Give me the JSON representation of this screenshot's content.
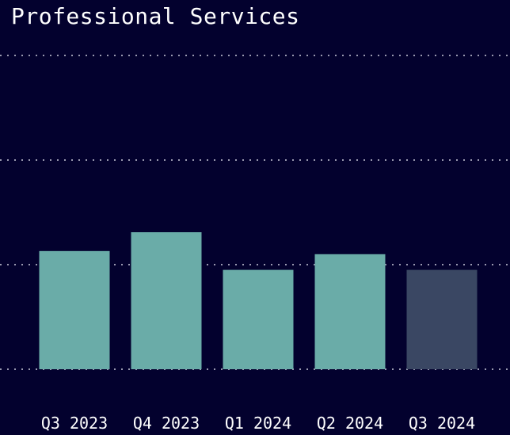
{
  "chart_data": {
    "type": "bar",
    "title": "Professional Services",
    "categories": [
      "Q3 2023",
      "Q4 2023",
      "Q1 2024",
      "Q2 2024",
      "Q3 2024"
    ],
    "values": [
      1.13,
      1.31,
      0.95,
      1.1,
      0.95
    ],
    "ylim": [
      0,
      3
    ],
    "grid": true,
    "legend": "none"
  },
  "colors": {
    "background": "#03012e",
    "bar": "#6aaca8",
    "bar_highlight": "#3a4763",
    "grid": "#9a9ab0",
    "text": "#ffffff"
  }
}
